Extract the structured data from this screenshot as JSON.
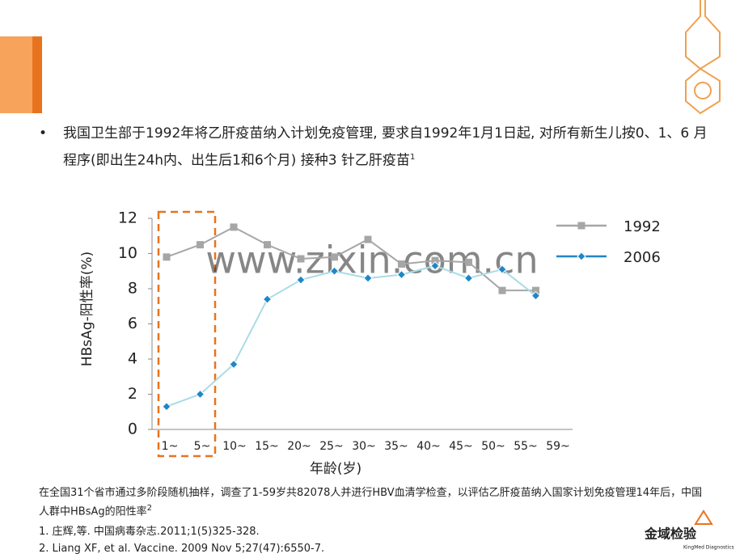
{
  "chart_data": {
    "type": "line",
    "bullet": "我国卫生部于1992年将乙肝疫苗纳入计划免疫管理, 要求自1992年1月1日起, 对所有新生儿按0、1、6 月程序(即出生24h内、出生后1和6个月) 接种3 针乙肝疫苗",
    "bullet_sup": "1",
    "xlabel": "年龄(岁)",
    "ylabel": "HBsAg-阳性率(%)",
    "categories": [
      "1~",
      "5~",
      "10~",
      "15~",
      "20~",
      "25~",
      "30~",
      "35~",
      "40~",
      "45~",
      "50~",
      "55~",
      "59~"
    ],
    "series": [
      {
        "name": "1992",
        "color": "#a6a6a6",
        "marker_color": "#a6a6a6",
        "marker": "square",
        "values": [
          9.8,
          10.5,
          11.5,
          10.5,
          9.7,
          9.8,
          10.8,
          9.4,
          9.6,
          9.5,
          7.9,
          7.9,
          null
        ]
      },
      {
        "name": "2006",
        "color": "#a9dbe8",
        "marker_color": "#1f86c8",
        "marker": "diamond",
        "values": [
          1.3,
          2.0,
          3.7,
          7.4,
          8.5,
          9.0,
          8.6,
          8.8,
          9.3,
          8.6,
          9.1,
          7.6,
          null
        ]
      }
    ],
    "ylim": [
      0,
      12
    ],
    "yticks": [
      0,
      2,
      4,
      6,
      8,
      10,
      12
    ],
    "legend": "right",
    "watermark": "www.zixin.com.cn",
    "note": "在全国31个省市通过多阶段随机抽样，调查了1-59岁共82078人并进行HBV血清学检查，以评估乙肝疫苗纳入国家计划免疫管理14年后，中国人群中HBsAg的阳性率",
    "note_sup": "2",
    "references": [
      "1.  庄辉,等. 中国病毒杂志.2011;1(5)325-328.",
      "2.  Liang XF, et al. Vaccine. 2009 Nov 5;27(47):6550-7."
    ],
    "logo": "金域检验",
    "logo_sub": "KingMed Diagnostics"
  }
}
